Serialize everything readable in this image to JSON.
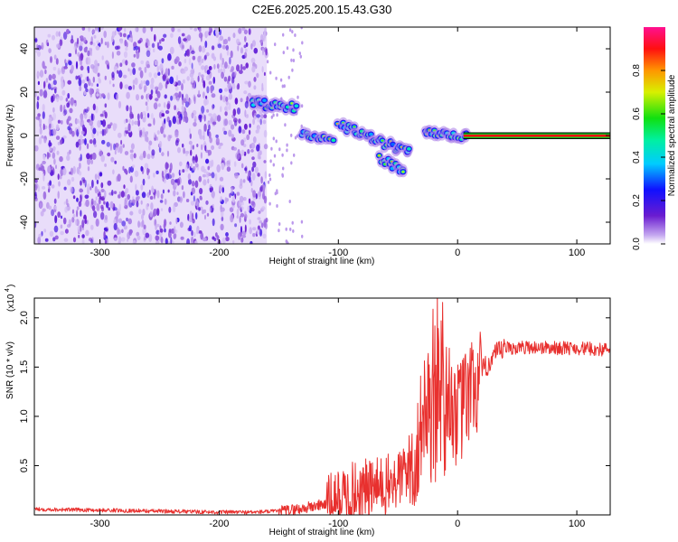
{
  "figure_title": "C2E6.2025.200.15.43.G30",
  "chart_data": [
    {
      "type": "heatmap",
      "xlabel": "Height of straight line (km)",
      "ylabel": "Frequency (Hz)",
      "xlim": [
        -355,
        128
      ],
      "ylim": [
        -50,
        50
      ],
      "x_ticks": [
        -300,
        -200,
        -100,
        0,
        100
      ],
      "y_ticks": [
        -40,
        -20,
        0,
        20,
        40
      ],
      "colorbar": {
        "label": "Normalized spectral amplitude",
        "range": [
          0,
          1
        ],
        "ticks": [
          0.0,
          0.2,
          0.4,
          0.6,
          0.8
        ]
      },
      "features": {
        "noise_region_x": [
          -355,
          -160
        ],
        "sparse_region_x": [
          -160,
          -130
        ],
        "blob_tracks": [
          {
            "x_from": -172,
            "x_to": -135,
            "freq_from": 15,
            "freq_to": 13
          },
          {
            "x_from": -130,
            "x_to": -105,
            "freq_from": 2,
            "freq_to": -3
          },
          {
            "x_from": -100,
            "x_to": -40,
            "freq_from": 5,
            "freq_to": -8
          },
          {
            "x_from": -65,
            "x_to": -45,
            "freq_from": -10,
            "freq_to": -17
          },
          {
            "x_from": -28,
            "x_to": 8,
            "freq_from": 1,
            "freq_to": 0
          }
        ],
        "steady_carrier": {
          "x_from": 5,
          "x_to": 128,
          "freq": 0
        }
      }
    },
    {
      "type": "line",
      "xlabel": "Height of straight line (km)",
      "ylabel": "SNR (10 * v/v)",
      "y_scale_note": "(x10",
      "y_scale_exp": "4",
      "xlim": [
        -355,
        128
      ],
      "ylim": [
        0,
        2.2
      ],
      "x_ticks": [
        -300,
        -200,
        -100,
        0,
        100
      ],
      "y_ticks": [
        0.5,
        1.0,
        1.5,
        2.0
      ],
      "series": [
        {
          "color": "#e8302e",
          "x": [
            -355,
            -300,
            -250,
            -200,
            -170,
            -150,
            -130,
            -110,
            -100,
            -90,
            -80,
            -70,
            -60,
            -50,
            -40,
            -35,
            -30,
            -25,
            -20,
            -15,
            -12,
            -10,
            -5,
            0,
            5,
            10,
            15,
            20,
            30,
            40,
            50,
            60,
            80,
            100,
            128
          ],
          "y": [
            0.06,
            0.05,
            0.04,
            0.03,
            0.03,
            0.04,
            0.07,
            0.12,
            0.18,
            0.25,
            0.28,
            0.3,
            0.32,
            0.38,
            0.55,
            0.62,
            1.0,
            1.2,
            1.3,
            1.45,
            1.5,
            1.3,
            1.2,
            1.05,
            1.15,
            1.3,
            1.35,
            1.45,
            1.62,
            1.7,
            1.7,
            1.71,
            1.7,
            1.7,
            1.68
          ]
        }
      ]
    }
  ]
}
